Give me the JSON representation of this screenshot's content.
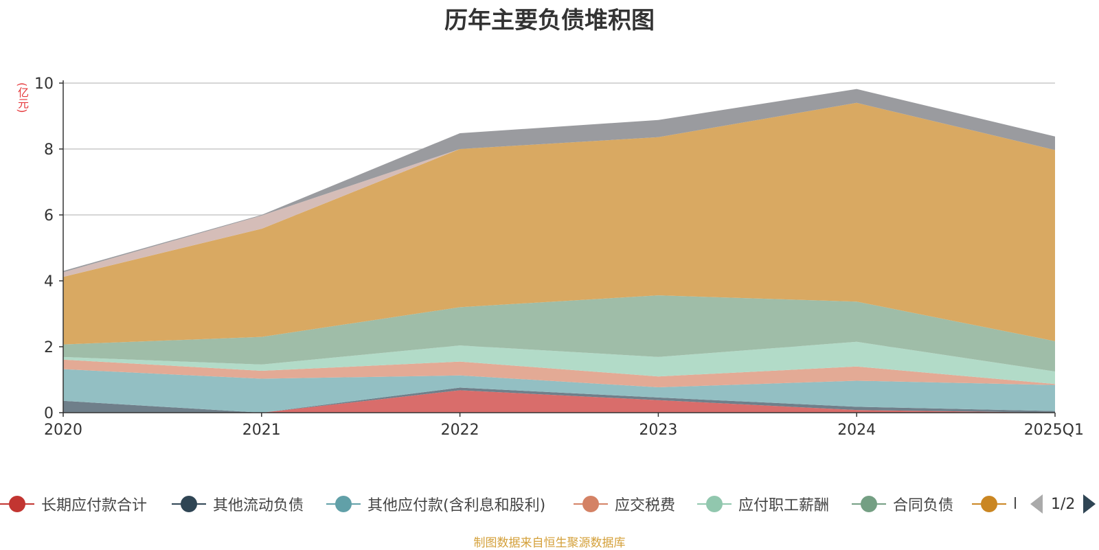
{
  "title": "历年主要负债堆积图",
  "unit_label": "(亿元)",
  "source": "制图数据来自恒生聚源数据库",
  "legend_page": "1/2",
  "legend": [
    {
      "name": "长期应付款合计",
      "color": "#c23531"
    },
    {
      "name": "其他流动负债",
      "color": "#2f4554"
    },
    {
      "name": "其他应付款(含利息和股利)",
      "color": "#61a0a8"
    },
    {
      "name": "应交税费",
      "color": "#d48265"
    },
    {
      "name": "应付职工薪酬",
      "color": "#91c7ae"
    },
    {
      "name": "合同负债",
      "color": "#749f83"
    },
    {
      "name": "l",
      "color": "#ca8622"
    }
  ],
  "chart_data": {
    "type": "area",
    "stacked": true,
    "categories": [
      "2020",
      "2021",
      "2022",
      "2023",
      "2024",
      "2025Q1"
    ],
    "yticks": [
      "0",
      "2",
      "4",
      "6",
      "8",
      "10"
    ],
    "ylim": [
      0,
      10
    ],
    "grid": true,
    "series": [
      {
        "name": "长期应付款合计",
        "color": "#d96d6b",
        "values": [
          0.0,
          0.0,
          0.68,
          0.38,
          0.08,
          0.0
        ]
      },
      {
        "name": "其他流动负债",
        "color": "#6f7f8a",
        "values": [
          0.36,
          0.0,
          0.08,
          0.08,
          0.1,
          0.05
        ]
      },
      {
        "name": "其他应付款(含利息和股利)",
        "color": "#93bfc3",
        "values": [
          0.96,
          1.03,
          0.37,
          0.31,
          0.79,
          0.79
        ]
      },
      {
        "name": "应交税费",
        "color": "#e3aa95",
        "values": [
          0.29,
          0.24,
          0.42,
          0.33,
          0.43,
          0.03
        ]
      },
      {
        "name": "应付职工薪酬",
        "color": "#b2dbc8",
        "values": [
          0.08,
          0.19,
          0.49,
          0.59,
          0.75,
          0.38
        ]
      },
      {
        "name": "合同负债",
        "color": "#9fbda8",
        "values": [
          0.38,
          0.84,
          1.16,
          1.87,
          1.22,
          0.92
        ]
      },
      {
        "name": "l",
        "color": "#d9a962",
        "values": [
          2.05,
          3.28,
          4.8,
          4.8,
          6.03,
          5.8
        ]
      },
      {
        "name": "",
        "color": "#d5bdb8",
        "values": [
          0.14,
          0.4,
          0.0,
          0.0,
          0.0,
          0.0
        ]
      },
      {
        "name": "",
        "color": "#9a9b9f",
        "values": [
          0.04,
          0.02,
          0.48,
          0.52,
          0.42,
          0.41
        ]
      }
    ]
  }
}
